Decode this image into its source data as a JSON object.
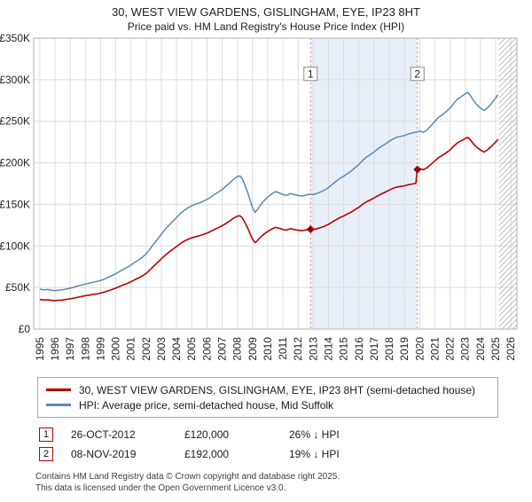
{
  "title": {
    "line1": "30, WEST VIEW GARDENS, GISLINGHAM, EYE, IP23 8HT",
    "line2": "Price paid vs. HM Land Registry's House Price Index (HPI)"
  },
  "chart_data": {
    "type": "line",
    "xlim": [
      1994.6,
      2026.4
    ],
    "ylim": [
      0,
      350
    ],
    "y_unit": "£K",
    "xticks": [
      1995,
      1996,
      1997,
      1998,
      1999,
      2000,
      2001,
      2002,
      2003,
      2004,
      2005,
      2006,
      2007,
      2008,
      2009,
      2010,
      2011,
      2012,
      2013,
      2014,
      2015,
      2016,
      2017,
      2018,
      2019,
      2020,
      2021,
      2022,
      2023,
      2024,
      2025,
      2026
    ],
    "yticks": [
      {
        "v": 0,
        "label": "£0"
      },
      {
        "v": 50,
        "label": "£50K"
      },
      {
        "v": 100,
        "label": "£100K"
      },
      {
        "v": 150,
        "label": "£150K"
      },
      {
        "v": 200,
        "label": "£200K"
      },
      {
        "v": 250,
        "label": "£250K"
      },
      {
        "v": 300,
        "label": "£300K"
      },
      {
        "v": 350,
        "label": "£350K"
      }
    ],
    "style": {
      "grid_color": "#dcdcdc",
      "border_color": "#b0b0b0",
      "shaded_color": "#e9eff9",
      "dotted_line_color": "#e37c7c",
      "hatch_color": "#c0c0c0",
      "marker_color": "#990000"
    },
    "shaded_region": {
      "from": 2012.82,
      "to": 2019.85
    },
    "hatched_region": {
      "from": 2025.2,
      "to": 2026.4
    },
    "marker_label_y": 307,
    "markers": [
      {
        "label": "1",
        "x": 2012.82,
        "y": 120
      },
      {
        "label": "2",
        "x": 2019.85,
        "y": 192
      }
    ],
    "series": [
      {
        "name": "hpi",
        "color": "#5e87b5",
        "width": 1.5,
        "points": [
          [
            1995.0,
            48
          ],
          [
            1995.25,
            47.3
          ],
          [
            1995.5,
            47.6
          ],
          [
            1995.75,
            46.8
          ],
          [
            1996.0,
            46.2
          ],
          [
            1996.25,
            46.9
          ],
          [
            1996.5,
            47.2
          ],
          [
            1996.75,
            48.1
          ],
          [
            1997.0,
            49.2
          ],
          [
            1997.25,
            50.3
          ],
          [
            1997.5,
            51.8
          ],
          [
            1997.75,
            53.0
          ],
          [
            1998.0,
            54.2
          ],
          [
            1998.25,
            55.1
          ],
          [
            1998.5,
            56.3
          ],
          [
            1998.75,
            57.2
          ],
          [
            1999.0,
            58.4
          ],
          [
            1999.25,
            60.1
          ],
          [
            1999.5,
            62.2
          ],
          [
            1999.75,
            64.3
          ],
          [
            2000.0,
            66.5
          ],
          [
            2000.25,
            69.2
          ],
          [
            2000.5,
            71.8
          ],
          [
            2000.75,
            74.1
          ],
          [
            2001.0,
            77.0
          ],
          [
            2001.25,
            80.2
          ],
          [
            2001.5,
            83.1
          ],
          [
            2001.75,
            86.3
          ],
          [
            2002.0,
            90.4
          ],
          [
            2002.25,
            96.2
          ],
          [
            2002.5,
            102.3
          ],
          [
            2002.75,
            108.1
          ],
          [
            2003.0,
            114.2
          ],
          [
            2003.25,
            119.8
          ],
          [
            2003.5,
            124.9
          ],
          [
            2003.75,
            129.7
          ],
          [
            2004.0,
            134.1
          ],
          [
            2004.25,
            139.0
          ],
          [
            2004.5,
            142.8
          ],
          [
            2004.75,
            145.9
          ],
          [
            2005.0,
            148.2
          ],
          [
            2005.25,
            150.1
          ],
          [
            2005.5,
            151.8
          ],
          [
            2005.75,
            153.7
          ],
          [
            2006.0,
            155.9
          ],
          [
            2006.25,
            158.8
          ],
          [
            2006.5,
            161.9
          ],
          [
            2006.75,
            164.8
          ],
          [
            2007.0,
            167.9
          ],
          [
            2007.25,
            171.8
          ],
          [
            2007.5,
            175.9
          ],
          [
            2007.75,
            180.1
          ],
          [
            2008.0,
            183.5
          ],
          [
            2008.17,
            184.2
          ],
          [
            2008.33,
            180.8
          ],
          [
            2008.5,
            173.2
          ],
          [
            2008.67,
            165.1
          ],
          [
            2008.83,
            155.4
          ],
          [
            2009.0,
            146.2
          ],
          [
            2009.17,
            140.3
          ],
          [
            2009.33,
            143.8
          ],
          [
            2009.5,
            148.9
          ],
          [
            2009.75,
            154.2
          ],
          [
            2010.0,
            158.8
          ],
          [
            2010.25,
            162.4
          ],
          [
            2010.5,
            165.3
          ],
          [
            2010.75,
            163.9
          ],
          [
            2011.0,
            161.8
          ],
          [
            2011.25,
            160.9
          ],
          [
            2011.5,
            163.1
          ],
          [
            2011.75,
            161.8
          ],
          [
            2012.0,
            160.7
          ],
          [
            2012.25,
            159.9
          ],
          [
            2012.5,
            161.2
          ],
          [
            2012.75,
            162.1
          ],
          [
            2013.0,
            161.8
          ],
          [
            2013.25,
            163.2
          ],
          [
            2013.5,
            165.1
          ],
          [
            2013.75,
            167.3
          ],
          [
            2014.0,
            170.2
          ],
          [
            2014.25,
            174.1
          ],
          [
            2014.5,
            177.8
          ],
          [
            2014.75,
            181.2
          ],
          [
            2015.0,
            183.9
          ],
          [
            2015.25,
            187.1
          ],
          [
            2015.5,
            190.3
          ],
          [
            2015.75,
            194.2
          ],
          [
            2016.0,
            198.1
          ],
          [
            2016.25,
            202.8
          ],
          [
            2016.5,
            206.9
          ],
          [
            2016.75,
            209.8
          ],
          [
            2017.0,
            213.1
          ],
          [
            2017.25,
            216.8
          ],
          [
            2017.5,
            219.9
          ],
          [
            2017.75,
            222.8
          ],
          [
            2018.0,
            225.9
          ],
          [
            2018.25,
            228.7
          ],
          [
            2018.5,
            230.8
          ],
          [
            2018.75,
            231.9
          ],
          [
            2019.0,
            232.8
          ],
          [
            2019.25,
            234.6
          ],
          [
            2019.5,
            235.8
          ],
          [
            2019.75,
            236.9
          ],
          [
            2020.0,
            238.1
          ],
          [
            2020.25,
            236.8
          ],
          [
            2020.5,
            239.9
          ],
          [
            2020.75,
            244.8
          ],
          [
            2021.0,
            249.9
          ],
          [
            2021.25,
            254.8
          ],
          [
            2021.5,
            257.9
          ],
          [
            2021.75,
            261.8
          ],
          [
            2022.0,
            265.9
          ],
          [
            2022.25,
            271.8
          ],
          [
            2022.5,
            276.9
          ],
          [
            2022.75,
            279.8
          ],
          [
            2023.0,
            282.9
          ],
          [
            2023.17,
            284.8
          ],
          [
            2023.33,
            281.2
          ],
          [
            2023.5,
            276.1
          ],
          [
            2023.75,
            270.2
          ],
          [
            2024.0,
            265.8
          ],
          [
            2024.25,
            262.9
          ],
          [
            2024.5,
            266.8
          ],
          [
            2024.75,
            271.9
          ],
          [
            2025.0,
            277.8
          ],
          [
            2025.15,
            281.9
          ]
        ]
      },
      {
        "name": "price-paid",
        "color": "#bb0000",
        "width": 1.6,
        "points": [
          [
            1995.0,
            35.5
          ],
          [
            1995.25,
            35.0
          ],
          [
            1995.5,
            35.2
          ],
          [
            1995.75,
            34.6
          ],
          [
            1996.0,
            34.2
          ],
          [
            1996.25,
            34.7
          ],
          [
            1996.5,
            34.9
          ],
          [
            1996.75,
            35.6
          ],
          [
            1997.0,
            36.4
          ],
          [
            1997.25,
            37.2
          ],
          [
            1997.5,
            38.3
          ],
          [
            1997.75,
            39.2
          ],
          [
            1998.0,
            40.1
          ],
          [
            1998.25,
            40.8
          ],
          [
            1998.5,
            41.7
          ],
          [
            1998.75,
            42.3
          ],
          [
            1999.0,
            43.2
          ],
          [
            1999.25,
            44.5
          ],
          [
            1999.5,
            46.0
          ],
          [
            1999.75,
            47.6
          ],
          [
            2000.0,
            49.2
          ],
          [
            2000.25,
            51.2
          ],
          [
            2000.5,
            53.1
          ],
          [
            2000.75,
            54.8
          ],
          [
            2001.0,
            57.0
          ],
          [
            2001.25,
            59.3
          ],
          [
            2001.5,
            61.5
          ],
          [
            2001.75,
            63.9
          ],
          [
            2002.0,
            66.9
          ],
          [
            2002.25,
            71.2
          ],
          [
            2002.5,
            75.7
          ],
          [
            2002.75,
            80.0
          ],
          [
            2003.0,
            84.5
          ],
          [
            2003.25,
            88.7
          ],
          [
            2003.5,
            92.4
          ],
          [
            2003.75,
            96.0
          ],
          [
            2004.0,
            99.2
          ],
          [
            2004.25,
            102.9
          ],
          [
            2004.5,
            105.7
          ],
          [
            2004.75,
            108.0
          ],
          [
            2005.0,
            109.7
          ],
          [
            2005.25,
            111.1
          ],
          [
            2005.5,
            112.3
          ],
          [
            2005.75,
            113.7
          ],
          [
            2006.0,
            115.4
          ],
          [
            2006.25,
            117.5
          ],
          [
            2006.5,
            119.8
          ],
          [
            2006.75,
            122.0
          ],
          [
            2007.0,
            124.2
          ],
          [
            2007.25,
            127.1
          ],
          [
            2007.5,
            130.2
          ],
          [
            2007.75,
            133.3
          ],
          [
            2008.0,
            135.8
          ],
          [
            2008.17,
            136.3
          ],
          [
            2008.33,
            133.8
          ],
          [
            2008.5,
            128.2
          ],
          [
            2008.67,
            122.2
          ],
          [
            2008.83,
            115.0
          ],
          [
            2009.0,
            108.2
          ],
          [
            2009.17,
            103.8
          ],
          [
            2009.33,
            106.4
          ],
          [
            2009.5,
            110.2
          ],
          [
            2009.75,
            114.1
          ],
          [
            2010.0,
            117.5
          ],
          [
            2010.25,
            120.2
          ],
          [
            2010.5,
            122.3
          ],
          [
            2010.75,
            121.3
          ],
          [
            2011.0,
            119.7
          ],
          [
            2011.25,
            119.1
          ],
          [
            2011.5,
            120.7
          ],
          [
            2011.75,
            119.7
          ],
          [
            2012.0,
            118.9
          ],
          [
            2012.25,
            118.3
          ],
          [
            2012.5,
            119.3
          ],
          [
            2012.75,
            119.9
          ],
          [
            2013.0,
            119.7
          ],
          [
            2013.25,
            120.8
          ],
          [
            2013.5,
            122.2
          ],
          [
            2013.75,
            123.8
          ],
          [
            2014.0,
            126.0
          ],
          [
            2014.25,
            128.8
          ],
          [
            2014.5,
            131.6
          ],
          [
            2014.75,
            134.1
          ],
          [
            2015.0,
            136.1
          ],
          [
            2015.25,
            138.5
          ],
          [
            2015.5,
            140.8
          ],
          [
            2015.75,
            143.7
          ],
          [
            2016.0,
            146.6
          ],
          [
            2016.25,
            150.1
          ],
          [
            2016.5,
            153.1
          ],
          [
            2016.75,
            155.3
          ],
          [
            2017.0,
            157.7
          ],
          [
            2017.25,
            160.4
          ],
          [
            2017.5,
            162.7
          ],
          [
            2017.75,
            164.9
          ],
          [
            2018.0,
            167.2
          ],
          [
            2018.25,
            169.2
          ],
          [
            2018.5,
            170.8
          ],
          [
            2018.75,
            171.6
          ],
          [
            2019.0,
            172.3
          ],
          [
            2019.25,
            173.6
          ],
          [
            2019.5,
            174.5
          ],
          [
            2019.75,
            175.3
          ],
          [
            2019.85,
            192.0
          ],
          [
            2020.0,
            192.9
          ],
          [
            2020.25,
            191.8
          ],
          [
            2020.5,
            194.3
          ],
          [
            2020.75,
            198.3
          ],
          [
            2021.0,
            202.4
          ],
          [
            2021.25,
            206.4
          ],
          [
            2021.5,
            208.9
          ],
          [
            2021.75,
            212.1
          ],
          [
            2022.0,
            215.4
          ],
          [
            2022.25,
            220.2
          ],
          [
            2022.5,
            224.3
          ],
          [
            2022.75,
            226.6
          ],
          [
            2023.0,
            229.2
          ],
          [
            2023.17,
            230.7
          ],
          [
            2023.33,
            227.8
          ],
          [
            2023.5,
            223.7
          ],
          [
            2023.75,
            218.9
          ],
          [
            2024.0,
            215.3
          ],
          [
            2024.25,
            213.0
          ],
          [
            2024.5,
            216.1
          ],
          [
            2024.75,
            220.3
          ],
          [
            2025.0,
            225.0
          ],
          [
            2025.15,
            228.3
          ]
        ]
      }
    ],
    "title": "30, WEST VIEW GARDENS, GISLINGHAM, EYE, IP23 8HT — Price paid vs. HM Land Registry's House Price Index (HPI)",
    "legend_position": "bottom"
  },
  "legend": [
    {
      "label": "30, WEST VIEW GARDENS, GISLINGHAM, EYE, IP23 8HT (semi-detached house)"
    },
    {
      "label": "HPI: Average price, semi-detached house, Mid Suffolk"
    }
  ],
  "sales": [
    {
      "num": "1",
      "date": "26-OCT-2012",
      "price": "£120,000",
      "note": "26% ↓ HPI"
    },
    {
      "num": "2",
      "date": "08-NOV-2019",
      "price": "£192,000",
      "note": "19% ↓ HPI"
    }
  ],
  "footer": {
    "line1": "Contains HM Land Registry data © Crown copyright and database right 2025.",
    "line2": "This data is licensed under the Open Government Licence v3.0."
  }
}
